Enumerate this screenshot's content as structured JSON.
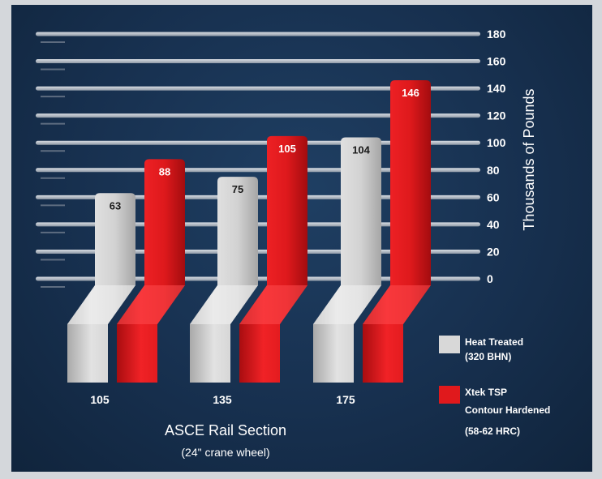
{
  "chart_data": {
    "type": "bar",
    "categories": [
      "105",
      "135",
      "175"
    ],
    "series": [
      {
        "name": "Heat Treated (320 BHN)",
        "values": [
          63,
          75,
          104
        ],
        "color": "#d6d6d6"
      },
      {
        "name": "Xtek TSP Contour Hardened (58-62 HRC)",
        "values": [
          88,
          105,
          146
        ],
        "color": "#e0191c"
      }
    ],
    "value_labels": [
      "63",
      "75",
      "104",
      "88",
      "105",
      "146"
    ],
    "yticks": [
      "180",
      "160",
      "140",
      "120",
      "100",
      "80",
      "60",
      "40",
      "20",
      "0"
    ],
    "ylim": [
      0,
      180
    ],
    "ylabel": "Thousands of Pounds",
    "xlabel": "ASCE Rail Section",
    "xlabel_sub": "(24\" crane wheel)",
    "legend": {
      "position": "bottom-right",
      "items": [
        {
          "line1": "Heat Treated",
          "line2": "(320 BHN)",
          "line3": ""
        },
        {
          "line1": "Xtek TSP",
          "line2": "Contour Hardened",
          "line3": "(58-62 HRC)"
        }
      ]
    },
    "colors": {
      "background": "#17304f",
      "gridline": "#c9ced6",
      "heat_treated": "#d6d6d6",
      "xtek": "#e0191c"
    }
  }
}
